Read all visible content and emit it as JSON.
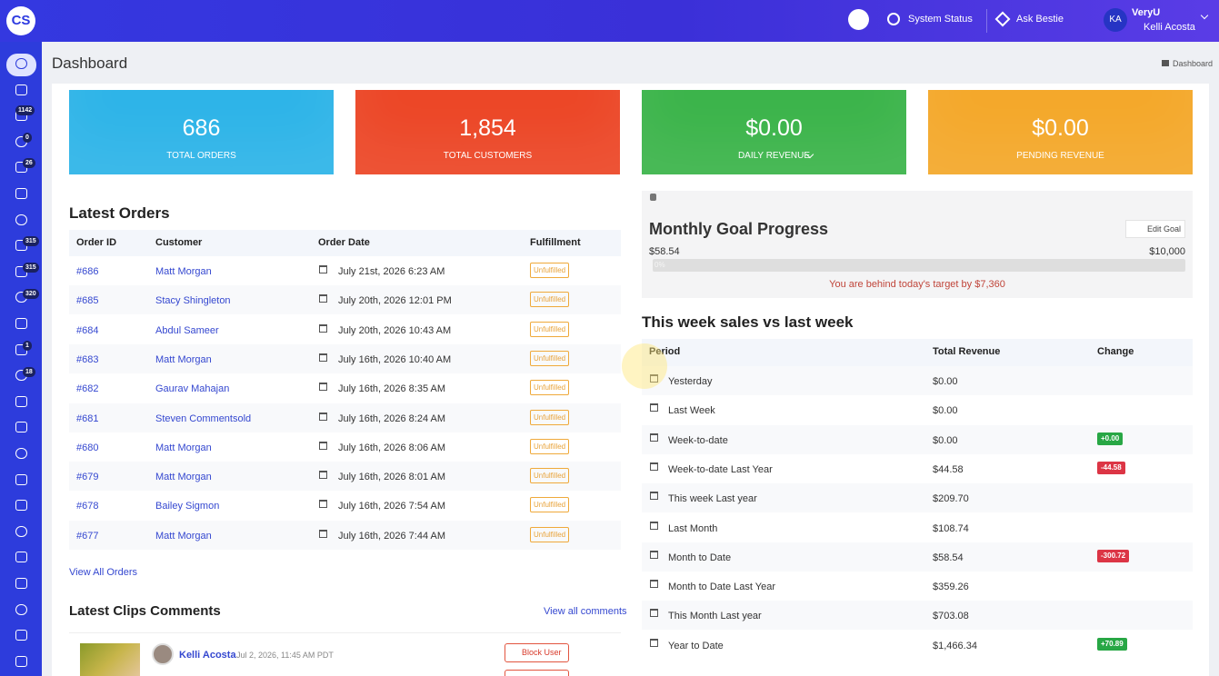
{
  "header": {
    "logo": "CS",
    "links": [
      "System Status",
      "Ask Bestie"
    ],
    "user_initials": "KA",
    "org": "VeryU",
    "user_name": "Kelli Acosta"
  },
  "sidebar": {
    "badges": [
      "1142",
      "0",
      "26",
      "315",
      "315",
      "320",
      "1",
      "18"
    ]
  },
  "page": {
    "title": "Dashboard",
    "breadcrumb": "Dashboard"
  },
  "stats": [
    {
      "value": "686",
      "label": "TOTAL ORDERS",
      "color": "#2db4e8"
    },
    {
      "value": "1,854",
      "label": "TOTAL CUSTOMERS",
      "color": "#ec4626"
    },
    {
      "value": "$0.00",
      "label": "DAILY REVENUE",
      "color": "#3bb44a"
    },
    {
      "value": "$0.00",
      "label": "PENDING REVENUE",
      "color": "#f4a82a"
    }
  ],
  "latest_orders": {
    "title": "Latest Orders",
    "headers": [
      "Order ID",
      "Customer",
      "Order Date",
      "Fulfillment"
    ],
    "rows": [
      [
        "#686",
        "Matt Morgan",
        "July 21st, 2026 6:23 AM",
        "Unfulfilled"
      ],
      [
        "#685",
        "Stacy Shingleton",
        "July 20th, 2026 12:01 PM",
        "Unfulfilled"
      ],
      [
        "#684",
        "Abdul Sameer",
        "July 20th, 2026 10:43 AM",
        "Unfulfilled"
      ],
      [
        "#683",
        "Matt Morgan",
        "July 16th, 2026 10:40 AM",
        "Unfulfilled"
      ],
      [
        "#682",
        "Gaurav Mahajan",
        "July 16th, 2026 8:35 AM",
        "Unfulfilled"
      ],
      [
        "#681",
        "Steven Commentsold",
        "July 16th, 2026 8:24 AM",
        "Unfulfilled"
      ],
      [
        "#680",
        "Matt Morgan",
        "July 16th, 2026 8:06 AM",
        "Unfulfilled"
      ],
      [
        "#679",
        "Matt Morgan",
        "July 16th, 2026 8:01 AM",
        "Unfulfilled"
      ],
      [
        "#678",
        "Bailey Sigmon",
        "July 16th, 2026 7:54 AM",
        "Unfulfilled"
      ],
      [
        "#677",
        "Matt Morgan",
        "July 16th, 2026 7:44 AM",
        "Unfulfilled"
      ]
    ],
    "link": "View All Orders"
  },
  "goal": {
    "title": "Monthly Goal Progress",
    "button": "Edit Goal",
    "current": "$58.54",
    "target": "$10,000",
    "progress_label": "0%",
    "message": "You are behind today's target by $7,360"
  },
  "sales": {
    "title": "This week sales vs last week",
    "headers": [
      "Period",
      "Total Revenue",
      "Change"
    ],
    "rows": [
      {
        "period": "Yesterday",
        "revenue": "$0.00",
        "change": null
      },
      {
        "period": "Last Week",
        "revenue": "$0.00",
        "change": null
      },
      {
        "period": "Week-to-date",
        "revenue": "$0.00",
        "change": {
          "text": "+0.00",
          "color": "#28a745"
        }
      },
      {
        "period": "Week-to-date Last Year",
        "revenue": "$44.58",
        "change": {
          "text": "-44.58",
          "color": "#dc3545"
        }
      },
      {
        "period": "This week Last year",
        "revenue": "$209.70",
        "change": null
      },
      {
        "period": "Last Month",
        "revenue": "$108.74",
        "change": null
      },
      {
        "period": "Month to Date",
        "revenue": "$58.54",
        "change": {
          "text": "-300.72",
          "color": "#dc3545"
        }
      },
      {
        "period": "Month to Date Last Year",
        "revenue": "$359.26",
        "change": null
      },
      {
        "period": "This Month Last year",
        "revenue": "$703.08",
        "change": null
      },
      {
        "period": "Year to Date",
        "revenue": "$1,466.34",
        "change": {
          "text": "+70.89",
          "color": "#28a745"
        }
      }
    ]
  },
  "clips": {
    "title": "Latest Clips Comments",
    "link": "View all comments",
    "comment": {
      "author": "Kelli Acosta",
      "date": "Jul 2, 2026, 11:45 AM PDT",
      "button": "Block User"
    }
  }
}
